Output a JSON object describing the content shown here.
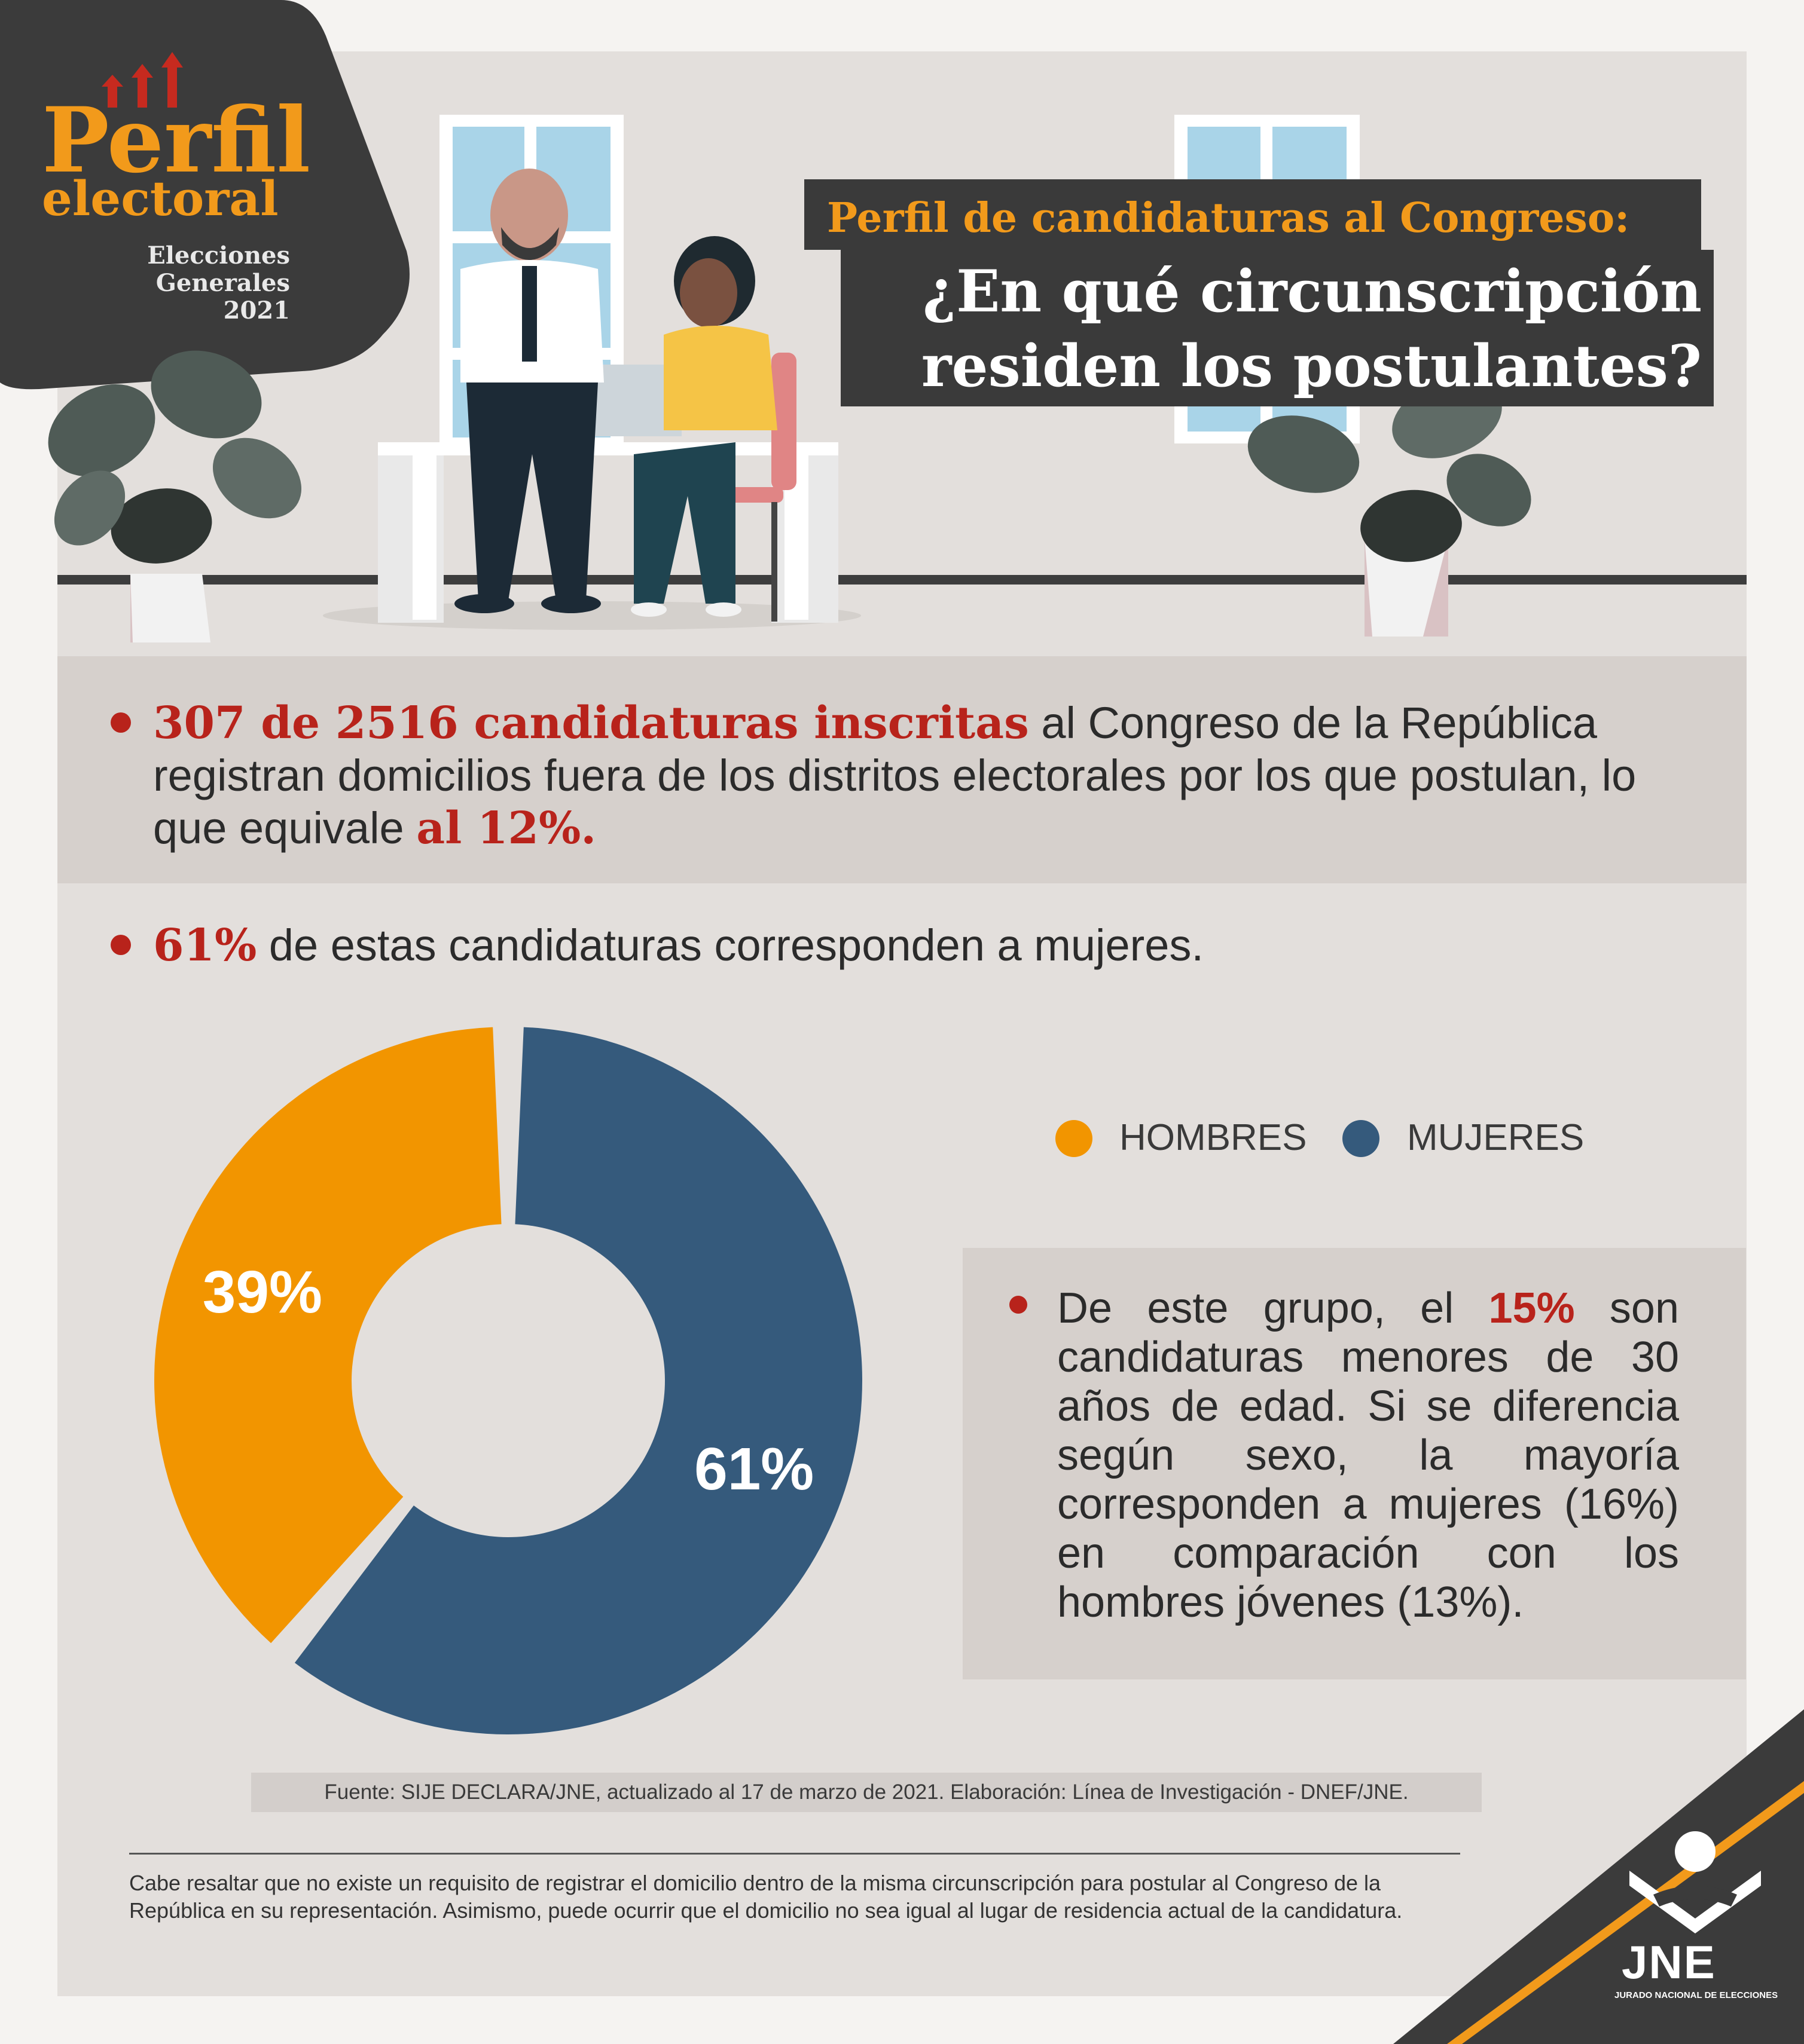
{
  "logo": {
    "title_line1": "Perfil",
    "title_line2": "electoral",
    "subtitle": "Elecciones\nGenerales\n2021",
    "accent_color": "#f29a1b"
  },
  "header": {
    "kicker": "Perfil de candidaturas al Congreso:",
    "title": "¿En qué circunscripción\nresiden los postulantes?"
  },
  "statement_1": {
    "highlight": "307 de 2516 candidaturas inscritas",
    "text": " al Congreso de la República registran domicilios fuera de los distritos electorales por los que postulan, lo que equivale ",
    "highlight_end": "al 12%."
  },
  "statement_2": {
    "highlight": "61%",
    "text": " de estas candidaturas corresponden a mujeres."
  },
  "legend": {
    "items": [
      {
        "label": "HOMBRES",
        "color": "#f29500"
      },
      {
        "label": "MUJERES",
        "color": "#355a7c"
      }
    ]
  },
  "chart_data": {
    "type": "pie",
    "variant": "donut",
    "categories": [
      "HOMBRES",
      "MUJERES"
    ],
    "values": [
      39,
      61
    ],
    "labels": [
      "39%",
      "61%"
    ],
    "colors": [
      "#f29500",
      "#355a7c"
    ]
  },
  "note": {
    "before": "De este grupo, el ",
    "highlight": "15%",
    "after": " son candidaturas menores de 30 años de edad. Si se diferencia según sexo, la mayoría corresponden a mujeres (16%) en comparación con los hombres jóvenes (13%)."
  },
  "source": "Fuente: SIJE DECLARA/JNE, actualizado al 17 de marzo de 2021. Elaboración: Línea de Investigación - DNEF/JNE.",
  "footnote": "Cabe resaltar que no existe un requisito de registrar el domicilio dentro de la misma circunscripción para postular al Congreso de la República en su representación. Asimismo, puede ocurrir que el domicilio no sea igual al lugar de residencia actual de la candidatura.",
  "brand": {
    "acronym": "JNE",
    "full_name": "JURADO NACIONAL DE ELECCIONES"
  },
  "colors": {
    "highlight": "#b8231b",
    "dark": "#3a3a3a"
  }
}
